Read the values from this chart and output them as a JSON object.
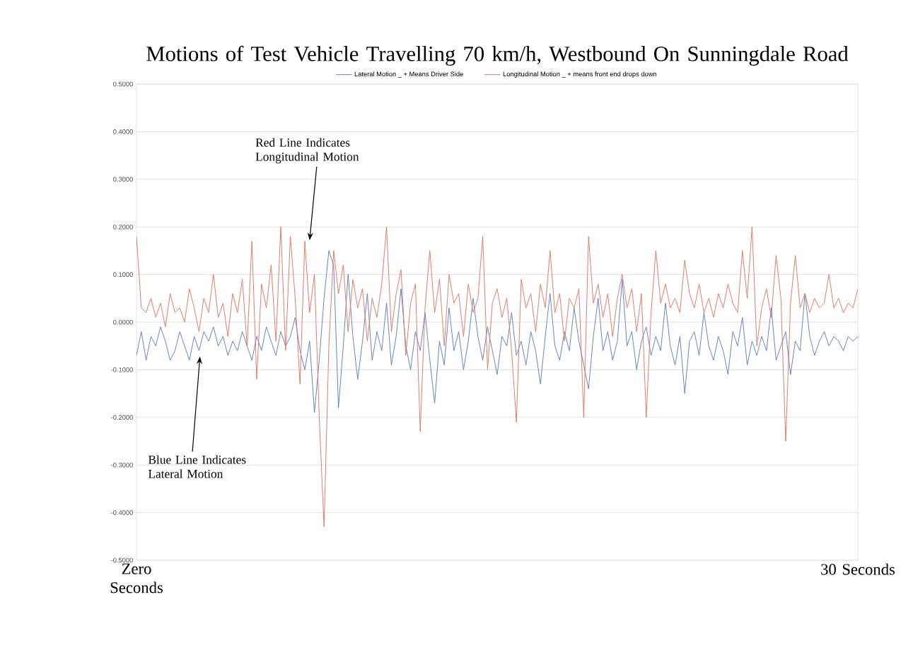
{
  "chart_data": {
    "type": "line",
    "title": "Motions of Test Vehicle Travelling 70 km/h, Westbound On Sunningdale Road",
    "categories": [
      "Zero Seconds",
      null,
      null,
      null,
      null,
      null,
      null,
      null,
      null,
      null,
      null,
      null,
      null,
      null,
      null,
      null,
      null,
      null,
      null,
      null,
      null,
      null,
      null,
      null,
      null,
      null,
      null,
      null,
      null,
      null,
      null,
      null,
      null,
      null,
      null,
      null,
      null,
      null,
      null,
      null,
      null,
      null,
      null,
      null,
      null,
      null,
      null,
      null,
      null,
      null,
      null,
      null,
      null,
      null,
      null,
      null,
      null,
      null,
      null,
      null,
      null,
      null,
      null,
      null,
      null,
      null,
      null,
      null,
      null,
      null,
      null,
      null,
      null,
      null,
      null,
      null,
      null,
      null,
      null,
      null,
      null,
      null,
      null,
      null,
      null,
      null,
      null,
      null,
      null,
      null,
      null,
      null,
      null,
      null,
      null,
      null,
      null,
      null,
      null,
      null,
      null,
      null,
      null,
      null,
      null,
      null,
      null,
      null,
      null,
      null,
      null,
      null,
      null,
      null,
      null,
      null,
      null,
      null,
      null,
      null,
      null,
      null,
      null,
      null,
      null,
      null,
      null,
      null,
      null,
      null,
      null,
      null,
      null,
      null,
      null,
      null,
      null,
      null,
      null,
      null,
      null,
      null,
      null,
      null,
      null,
      null,
      null,
      null,
      null,
      null,
      "30 Seconds"
    ],
    "ylim": [
      -0.5,
      0.5
    ],
    "yticks": [
      {
        "value": -0.5,
        "label": "-0.5000"
      },
      {
        "value": -0.4,
        "label": "-0.4000"
      },
      {
        "value": -0.3,
        "label": "-0.3000"
      },
      {
        "value": -0.2,
        "label": "-0.2000"
      },
      {
        "value": -0.1,
        "label": "-0.1000"
      },
      {
        "value": 0,
        "label": "0.0000"
      },
      {
        "value": 0.1,
        "label": "0.1000"
      },
      {
        "value": 0.2,
        "label": "0.2000"
      },
      {
        "value": 0.3,
        "label": "0.3000"
      },
      {
        "value": 0.4,
        "label": "0.4000"
      },
      {
        "value": 0.5,
        "label": "0.5000"
      }
    ],
    "grid": "y",
    "legend": "top",
    "marker": "none",
    "line_style": "solid",
    "annotations": [
      "Red Line Indicates Longitudinal Motion",
      "Blue Line Indicates Lateral Motion"
    ],
    "series": [
      {
        "name": "Lateral Motion _ + Means Driver Side",
        "color": "#5b7bc4",
        "values": [
          -0.07,
          -0.02,
          -0.08,
          -0.03,
          -0.05,
          -0.01,
          -0.04,
          -0.08,
          -0.06,
          -0.02,
          -0.05,
          -0.08,
          -0.03,
          -0.06,
          -0.02,
          -0.04,
          -0.01,
          -0.05,
          -0.03,
          -0.07,
          -0.04,
          -0.06,
          -0.02,
          -0.05,
          -0.08,
          -0.03,
          -0.06,
          -0.01,
          -0.04,
          -0.07,
          -0.02,
          -0.05,
          -0.03,
          0.01,
          -0.06,
          -0.1,
          -0.04,
          -0.19,
          -0.08,
          0.05,
          0.15,
          0.12,
          -0.18,
          -0.05,
          0.1,
          -0.03,
          -0.12,
          -0.04,
          0.06,
          -0.08,
          -0.02,
          -0.06,
          0.04,
          -0.09,
          -0.03,
          0.07,
          -0.05,
          -0.1,
          -0.02,
          -0.06,
          0.02,
          -0.08,
          -0.17,
          -0.04,
          -0.09,
          0.03,
          -0.06,
          -0.02,
          -0.1,
          -0.04,
          0.05,
          -0.03,
          -0.08,
          -0.01,
          -0.06,
          -0.11,
          -0.03,
          -0.05,
          0.02,
          -0.07,
          -0.04,
          -0.09,
          -0.02,
          -0.06,
          -0.13,
          -0.03,
          0.06,
          -0.05,
          -0.08,
          -0.02,
          -0.06,
          0.03,
          -0.04,
          -0.09,
          -0.14,
          -0.03,
          0.05,
          -0.06,
          -0.02,
          -0.08,
          -0.04,
          0.09,
          -0.05,
          -0.02,
          -0.1,
          -0.04,
          -0.01,
          -0.07,
          -0.03,
          -0.06,
          0.04,
          -0.05,
          -0.09,
          -0.03,
          -0.15,
          -0.04,
          -0.02,
          -0.07,
          0.02,
          -0.05,
          -0.08,
          -0.03,
          -0.06,
          -0.11,
          -0.02,
          -0.05,
          0.01,
          -0.09,
          -0.04,
          -0.07,
          -0.03,
          -0.06,
          0.03,
          -0.08,
          -0.05,
          -0.02,
          -0.11,
          -0.04,
          -0.06,
          0.06,
          -0.03,
          -0.07,
          -0.04,
          -0.02,
          -0.05,
          -0.03,
          -0.04,
          -0.06,
          -0.03,
          -0.04,
          -0.03
        ]
      },
      {
        "name": "Longitudinal Motion _ + means front end drops down",
        "color": "#e0735f",
        "values": [
          0.18,
          0.03,
          0.02,
          0.05,
          0.01,
          0.04,
          -0.01,
          0.06,
          0.02,
          0.03,
          0.0,
          0.07,
          0.03,
          -0.02,
          0.05,
          0.02,
          0.1,
          0.01,
          0.04,
          -0.03,
          0.06,
          0.02,
          0.09,
          -0.05,
          0.17,
          -0.12,
          0.08,
          0.03,
          0.12,
          -0.04,
          0.2,
          -0.06,
          0.18,
          0.05,
          -0.13,
          0.17,
          0.02,
          0.1,
          -0.2,
          -0.43,
          -0.05,
          0.15,
          0.06,
          0.12,
          -0.02,
          0.09,
          0.03,
          0.07,
          -0.04,
          0.05,
          0.01,
          0.08,
          0.2,
          -0.02,
          0.06,
          0.11,
          -0.07,
          0.04,
          0.08,
          -0.23,
          0.03,
          0.15,
          0.02,
          0.09,
          -0.05,
          0.1,
          0.04,
          0.06,
          -0.03,
          0.08,
          0.02,
          0.05,
          0.18,
          -0.1,
          0.04,
          0.07,
          0.01,
          0.05,
          -0.06,
          -0.21,
          0.09,
          0.03,
          0.06,
          -0.02,
          0.08,
          0.03,
          0.15,
          0.02,
          0.06,
          -0.04,
          0.05,
          0.03,
          0.07,
          -0.2,
          0.18,
          0.04,
          0.08,
          0.01,
          0.06,
          -0.03,
          0.05,
          0.1,
          0.03,
          0.07,
          -0.02,
          0.06,
          -0.2,
          0.02,
          0.15,
          0.04,
          0.08,
          0.03,
          0.05,
          0.02,
          0.13,
          0.06,
          0.03,
          0.08,
          0.02,
          0.05,
          0.01,
          0.06,
          0.03,
          0.08,
          0.04,
          0.02,
          0.15,
          0.05,
          0.2,
          -0.05,
          0.03,
          0.07,
          0.01,
          0.14,
          0.05,
          -0.25,
          0.04,
          0.14,
          0.03,
          0.06,
          0.02,
          0.05,
          0.03,
          0.04,
          0.1,
          0.03,
          0.05,
          0.02,
          0.04,
          0.03,
          0.07
        ]
      }
    ]
  }
}
